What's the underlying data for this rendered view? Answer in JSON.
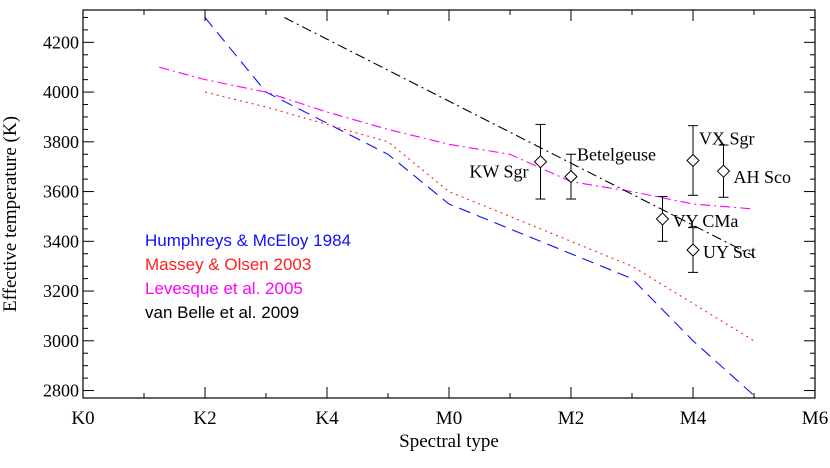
{
  "chart_data": {
    "type": "line",
    "xlabel": "Spectral type",
    "ylabel": "Effective temperature (K)",
    "x_categories": [
      "K0",
      "K2",
      "K4",
      "M0",
      "M2",
      "M4",
      "M6"
    ],
    "x_numeric": [
      0,
      2,
      4,
      6,
      8,
      10,
      12
    ],
    "xlim": [
      0,
      12
    ],
    "ylim": [
      2770,
      4330
    ],
    "yticks": [
      2800,
      3000,
      3200,
      3400,
      3600,
      3800,
      4000,
      4200
    ],
    "grid": false,
    "legend_position": "middle-left",
    "series": [
      {
        "name": "Humphreys & McEloy 1984",
        "color": "#1010ff",
        "dash": "dashed",
        "x": [
          2,
          3,
          5,
          6,
          7,
          9,
          10,
          11
        ],
        "y": [
          4300,
          4000,
          3750,
          3550,
          3450,
          3250,
          3000,
          2780
        ]
      },
      {
        "name": "Massey & Olsen 2003",
        "color": "#ff2020",
        "dash": "dotted",
        "x": [
          2,
          3,
          5,
          6,
          7,
          9,
          10,
          11
        ],
        "y": [
          4000,
          3940,
          3800,
          3600,
          3500,
          3300,
          3150,
          3000
        ]
      },
      {
        "name": "Levesque et al. 2005",
        "color": "#ff00ff",
        "dash": "dashdot",
        "x": [
          1.25,
          2,
          3,
          4,
          5,
          6,
          7,
          8,
          9,
          10,
          11
        ],
        "y": [
          4100,
          4050,
          4000,
          3920,
          3850,
          3790,
          3750,
          3640,
          3600,
          3550,
          3530
        ]
      },
      {
        "name": "van Belle et al. 2009",
        "color": "#000000",
        "dash": "dashdot",
        "x": [
          3.3,
          11
        ],
        "y": [
          4300,
          3340
        ]
      }
    ],
    "stars": [
      {
        "name": "KW Sgr",
        "x": 7.5,
        "y": 3720,
        "err": 150
      },
      {
        "name": "Betelgeuse",
        "x": 8.0,
        "y": 3660,
        "err": 90
      },
      {
        "name": "VY CMa",
        "x": 9.5,
        "y": 3490,
        "err": 90
      },
      {
        "name": "VX Sgr",
        "x": 10.0,
        "y": 3725,
        "err": 140
      },
      {
        "name": "UY Sct",
        "x": 10.0,
        "y": 3365,
        "err": 90
      },
      {
        "name": "AH Sco",
        "x": 10.5,
        "y": 3682,
        "err": 105
      }
    ]
  }
}
